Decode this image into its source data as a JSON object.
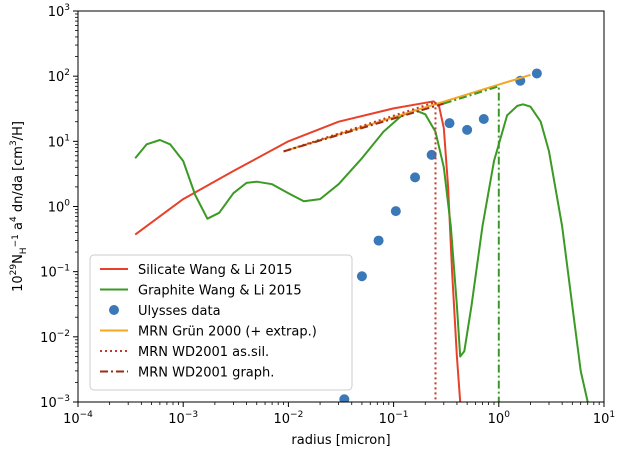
{
  "chart_data": {
    "type": "line",
    "title": "",
    "xlabel": "radius [micron]",
    "ylabel": "10^29 N_H^-1 a^4 dn/da [cm^3/H]",
    "xscale": "log",
    "yscale": "log",
    "xlim": [
      0.0001,
      10
    ],
    "ylim": [
      0.001,
      1000
    ],
    "x_ticks": [
      {
        "value": 0.0001,
        "base": "10",
        "exp": "−4"
      },
      {
        "value": 0.001,
        "base": "10",
        "exp": "−3"
      },
      {
        "value": 0.01,
        "base": "10",
        "exp": "−2"
      },
      {
        "value": 0.1,
        "base": "10",
        "exp": "−1"
      },
      {
        "value": 1,
        "base": "10",
        "exp": "0"
      },
      {
        "value": 10,
        "base": "10",
        "exp": "1"
      }
    ],
    "y_ticks": [
      {
        "value": 0.001,
        "base": "10",
        "exp": "−3"
      },
      {
        "value": 0.01,
        "base": "10",
        "exp": "−2"
      },
      {
        "value": 0.1,
        "base": "10",
        "exp": "−1"
      },
      {
        "value": 1,
        "base": "10",
        "exp": "0"
      },
      {
        "value": 10,
        "base": "10",
        "exp": "1"
      },
      {
        "value": 100,
        "base": "10",
        "exp": "2"
      },
      {
        "value": 1000,
        "base": "10",
        "exp": "3"
      }
    ],
    "grid": false,
    "legend_position": "lower-left",
    "series": [
      {
        "name": "Silicate Wang & Li 2015",
        "kind": "line",
        "color": "#e8412a",
        "dash": "solid",
        "x": [
          0.00035,
          0.001,
          0.003,
          0.01,
          0.03,
          0.1,
          0.2,
          0.24,
          0.27,
          0.3,
          0.33,
          0.36,
          0.4,
          0.43
        ],
        "y": [
          0.37,
          1.3,
          3.5,
          10,
          20,
          32,
          39,
          41,
          35,
          16,
          2,
          0.1,
          0.005,
          0.001
        ]
      },
      {
        "name": "Graphite Wang & Li 2015",
        "kind": "line",
        "color": "#3a9a24",
        "dash": "solid",
        "x": [
          0.00035,
          0.00045,
          0.0006,
          0.00075,
          0.001,
          0.0013,
          0.0017,
          0.0022,
          0.003,
          0.004,
          0.005,
          0.007,
          0.01,
          0.014,
          0.02,
          0.03,
          0.05,
          0.08,
          0.12,
          0.16,
          0.2,
          0.25,
          0.3,
          0.35,
          0.4,
          0.43,
          0.47,
          0.55,
          0.7,
          0.9,
          1.2,
          1.5,
          1.7,
          2,
          2.5,
          3,
          4,
          5,
          6,
          7
        ],
        "y": [
          5.5,
          9,
          10.5,
          9,
          5,
          1.5,
          0.65,
          0.8,
          1.6,
          2.3,
          2.4,
          2.2,
          1.6,
          1.2,
          1.3,
          2.2,
          5.5,
          14,
          25,
          30,
          26,
          14,
          4,
          0.5,
          0.03,
          0.005,
          0.006,
          0.03,
          0.5,
          5,
          25,
          35,
          37,
          34,
          20,
          7,
          0.5,
          0.03,
          0.003,
          0.001
        ]
      },
      {
        "name": "Ulysses data",
        "kind": "scatter",
        "color": "#3a78b8",
        "x": [
          0.034,
          0.05,
          0.072,
          0.105,
          0.16,
          0.23,
          0.34,
          0.5,
          0.72,
          1.6,
          2.3
        ],
        "y": [
          0.0011,
          0.085,
          0.3,
          0.85,
          2.8,
          6.2,
          19,
          15,
          22,
          85,
          110
        ]
      },
      {
        "name": "MRN Grün 2000 (+ extrap.)",
        "kind": "line",
        "color": "#f5a623",
        "dash": "solid",
        "x": [
          0.009,
          2
        ],
        "y": [
          7,
          105
        ]
      },
      {
        "name": "MRN WD2001 as.sil.",
        "kind": "line",
        "color": "#c0392b",
        "dash": "dotted",
        "x": [
          0.009,
          0.25,
          0.25
        ],
        "y": [
          7,
          40,
          0.001
        ]
      },
      {
        "name": "MRN WD2001 graph.",
        "kind": "line",
        "color": "#9b2d16",
        "dash": "dashdot",
        "x": [
          0.009,
          0.3
        ],
        "y": [
          7,
          38
        ]
      },
      {
        "name": "",
        "kind": "line",
        "color": "#3a9a24",
        "dash": "dashdot",
        "x": [
          0.3,
          1,
          1
        ],
        "y": [
          38,
          70,
          0.001
        ]
      }
    ]
  }
}
